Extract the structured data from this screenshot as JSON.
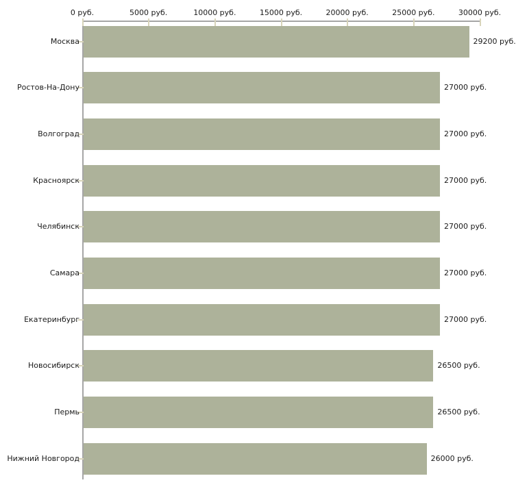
{
  "chart_data": {
    "type": "bar",
    "orientation": "horizontal",
    "title": "",
    "xlabel": "",
    "ylabel": "",
    "categories": [
      "Москва",
      "Ростов-На-Дону",
      "Волгоград",
      "Красноярск",
      "Челябинск",
      "Самара",
      "Екатеринбург",
      "Новосибирск",
      "Пермь",
      "Нижний Новгород"
    ],
    "values": [
      29200,
      27000,
      27000,
      27000,
      27000,
      27000,
      27000,
      26500,
      26500,
      26000
    ],
    "value_labels": [
      "29200 руб.",
      "27000 руб.",
      "27000 руб.",
      "27000 руб.",
      "27000 руб.",
      "27000 руб.",
      "27000 руб.",
      "26500 руб.",
      "26500 руб.",
      "26000 руб."
    ],
    "x_tick_values": [
      0,
      5000,
      10000,
      15000,
      20000,
      25000,
      30000
    ],
    "x_tick_labels": [
      "0 руб.",
      "5000 руб.",
      "10000 руб.",
      "15000 руб.",
      "20000 руб.",
      "25000 руб.",
      "30000 руб."
    ],
    "xlim": [
      0,
      30000
    ],
    "grid": false,
    "legend": null,
    "colors": {
      "bar": "#adb29a",
      "axis": "#a6a6a6",
      "tick": "#d8d4ba",
      "text": "#1a1a1a",
      "background": "#ffffff"
    }
  }
}
